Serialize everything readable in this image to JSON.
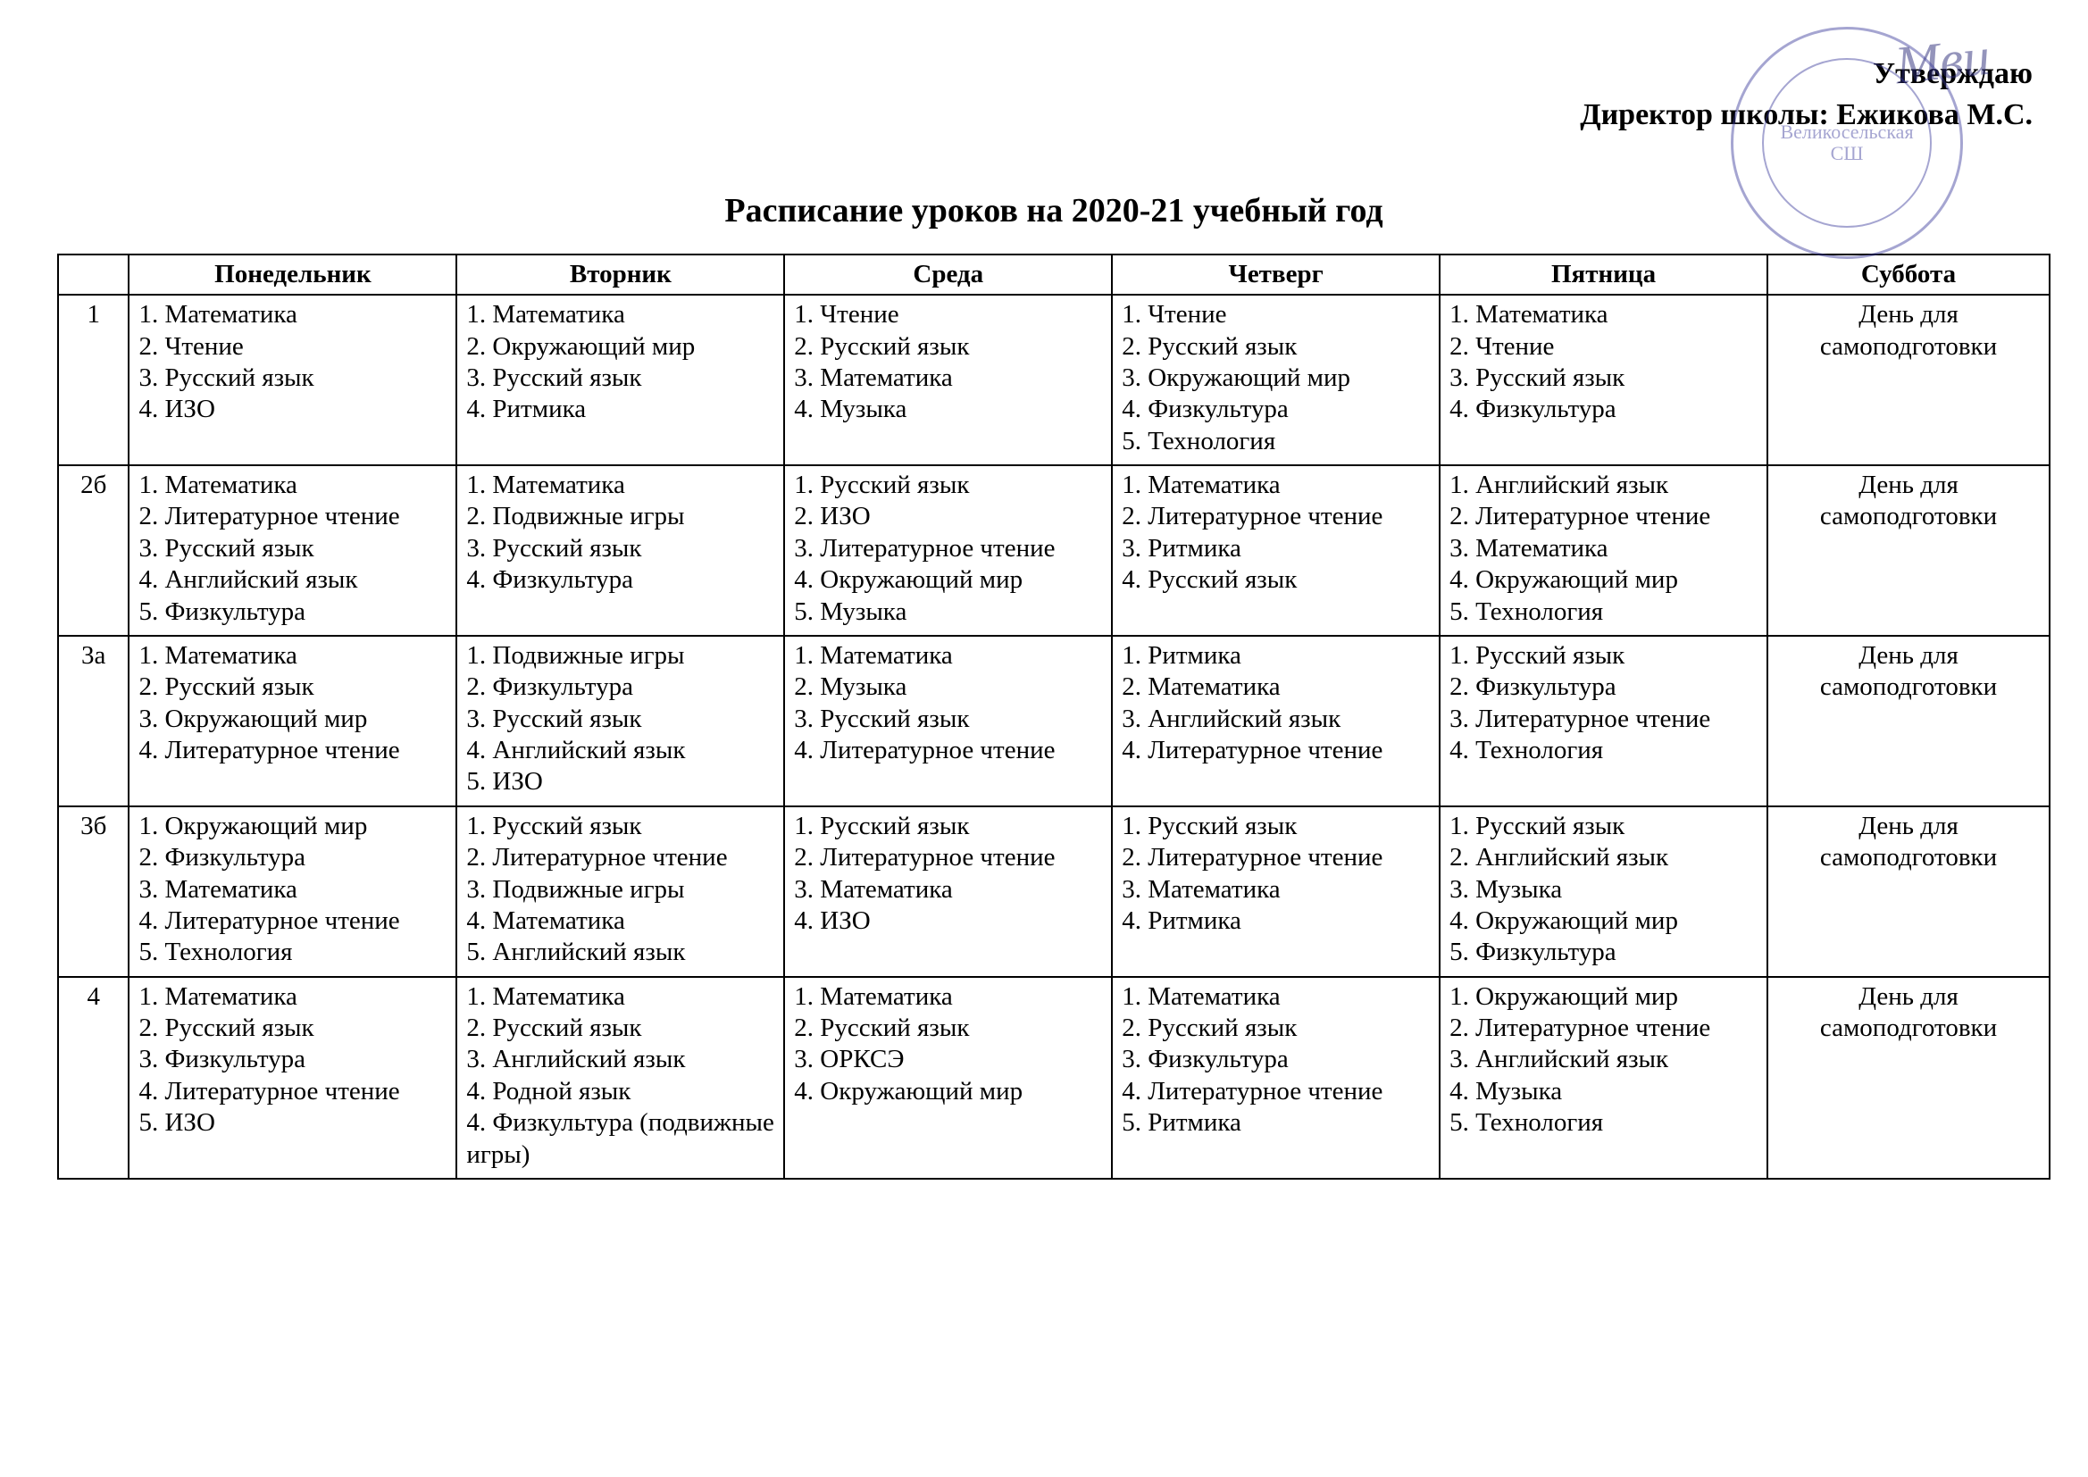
{
  "approve": {
    "line1": "Утверждаю",
    "line2": "Директор школы: Ежикова М.С."
  },
  "stamp": {
    "line1": "Великосельская",
    "line2": "СШ",
    "ring_color": "#3a3a9a"
  },
  "title": "Расписание уроков на 2020-21 учебный год",
  "headers": [
    "",
    "Понедельник",
    "Вторник",
    "Среда",
    "Четверг",
    "Пятница",
    "Суббота"
  ],
  "saturday_text": [
    "День для",
    "самоподготовки"
  ],
  "rows": [
    {
      "class": "1",
      "days": [
        [
          "1. Математика",
          "2. Чтение",
          "3. Русский язык",
          "4. ИЗО"
        ],
        [
          "1. Математика",
          "2. Окружающий мир",
          "3. Русский язык",
          "4. Ритмика"
        ],
        [
          "1. Чтение",
          "2. Русский язык",
          "3. Математика",
          "4. Музыка"
        ],
        [
          "1. Чтение",
          "2. Русский язык",
          "3. Окружающий мир",
          "4. Физкультура",
          "5. Технология"
        ],
        [
          "1. Математика",
          "2. Чтение",
          "3. Русский язык",
          "4. Физкультура"
        ]
      ]
    },
    {
      "class": "2б",
      "days": [
        [
          "1. Математика",
          "2. Литературное чтение",
          "3. Русский язык",
          "4. Английский язык",
          "5. Физкультура"
        ],
        [
          "1. Математика",
          "2. Подвижные игры",
          "3. Русский язык",
          "4. Физкультура"
        ],
        [
          "1. Русский язык",
          "2. ИЗО",
          "3. Литературное чтение",
          "4. Окружающий мир",
          "5. Музыка"
        ],
        [
          "1. Математика",
          "2. Литературное чтение",
          "3. Ритмика",
          "4. Русский язык"
        ],
        [
          "1. Английский язык",
          "2. Литературное чтение",
          "3. Математика",
          "4. Окружающий мир",
          "5. Технология"
        ]
      ]
    },
    {
      "class": "3а",
      "days": [
        [
          "1. Математика",
          "2. Русский язык",
          "3. Окружающий мир",
          "4. Литературное чтение"
        ],
        [
          "1. Подвижные игры",
          "2. Физкультура",
          "3. Русский язык",
          "4. Английский язык",
          "5. ИЗО"
        ],
        [
          "1. Математика",
          "2. Музыка",
          "3. Русский язык",
          "4. Литературное чтение"
        ],
        [
          "1. Ритмика",
          "2. Математика",
          "3. Английский язык",
          "4. Литературное чтение"
        ],
        [
          "1. Русский язык",
          "2. Физкультура",
          "3. Литературное чтение",
          "4. Технология"
        ]
      ]
    },
    {
      "class": "3б",
      "days": [
        [
          "1. Окружающий мир",
          "2. Физкультура",
          "3. Математика",
          "4. Литературное чтение",
          "5. Технология"
        ],
        [
          "1. Русский язык",
          "2. Литературное чтение",
          "3. Подвижные игры",
          "4. Математика",
          "5. Английский язык"
        ],
        [
          "1. Русский язык",
          "2. Литературное чтение",
          "3. Математика",
          "4. ИЗО"
        ],
        [
          "1. Русский язык",
          "2. Литературное чтение",
          "3. Математика",
          "4. Ритмика"
        ],
        [
          "1. Русский язык",
          "2. Английский язык",
          "3. Музыка",
          "4. Окружающий  мир",
          "5. Физкультура"
        ]
      ]
    },
    {
      "class": "4",
      "days": [
        [
          "1. Математика",
          "2. Русский язык",
          "3. Физкультура",
          "4. Литературное чтение",
          "5. ИЗО"
        ],
        [
          "1. Математика",
          "2. Русский язык",
          "3. Английский язык",
          "4. Родной язык",
          "4.        Физкультура (подвижные игры)"
        ],
        [
          "1. Математика",
          "2. Русский язык",
          "3. ОРКСЭ",
          "4. Окружающий мир"
        ],
        [
          "1. Математика",
          "2. Русский язык",
          "3. Физкультура",
          "4. Литературное чтение",
          "5. Ритмика"
        ],
        [
          "1. Окружающий мир",
          "2. Литературное чтение",
          "3. Английский язык",
          "4. Музыка",
          "5. Технология"
        ]
      ]
    }
  ],
  "style": {
    "page_bg": "#ffffff",
    "text_color": "#000000",
    "border_color": "#000000",
    "header_fontsize": 29,
    "cell_fontsize": 29,
    "title_fontsize": 38,
    "approve_fontsize": 34
  }
}
